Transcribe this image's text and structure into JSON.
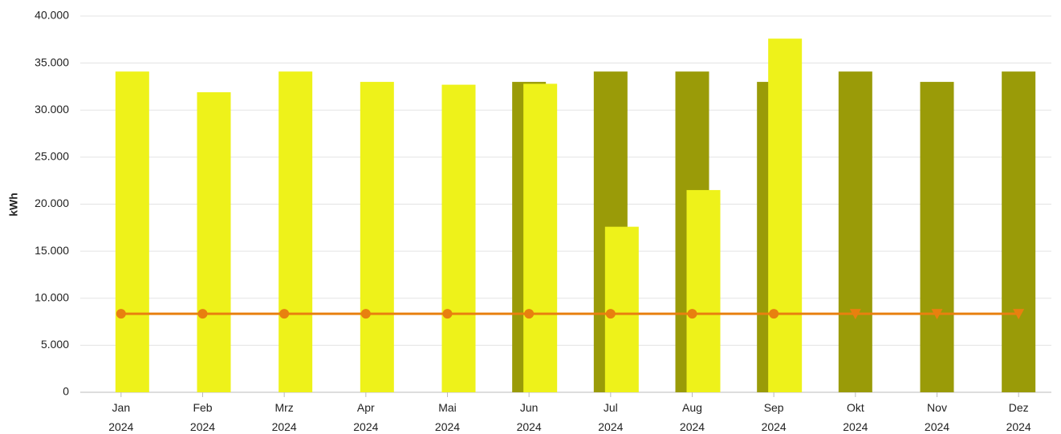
{
  "chart_data": {
    "type": "bar",
    "y_label": "kWh",
    "categories": [
      "Jan\n2024",
      "Feb\n2024",
      "Mrz\n2024",
      "Apr\n2024",
      "Mai\n2024",
      "Jun\n2024",
      "Jul\n2024",
      "Aug\n2024",
      "Sep\n2024",
      "Okt\n2024",
      "Nov\n2024",
      "Dez\n2024"
    ],
    "series": [
      {
        "color": "#9a9b08",
        "values": [
          null,
          null,
          null,
          null,
          null,
          33000,
          34100,
          34100,
          33000,
          34100,
          33000,
          34100
        ]
      },
      {
        "color": "#eef21a",
        "values": [
          34100,
          31900,
          34100,
          33000,
          32700,
          32800,
          17600,
          21500,
          37600,
          null,
          null,
          null
        ]
      },
      {
        "type": "line",
        "color": "#e8800f",
        "values": [
          8350,
          8350,
          8350,
          8350,
          8350,
          8350,
          8350,
          8350,
          8350,
          8350,
          8350,
          8350
        ],
        "markers": [
          "circle",
          "circle",
          "circle",
          "circle",
          "circle",
          "circle",
          "circle",
          "circle",
          "circle",
          "triangle",
          "triangle",
          "triangle"
        ]
      }
    ],
    "ylim": [
      0,
      40000
    ],
    "yticks": [
      0,
      {
        "value": 5000,
        "label": "5.000"
      },
      {
        "value": 10000,
        "label": "10.000"
      },
      {
        "value": 15000,
        "label": "15.000"
      },
      {
        "value": 20000,
        "label": "20.000"
      },
      {
        "value": 25000,
        "label": "25.000"
      },
      {
        "value": 30000,
        "label": "30.000"
      },
      {
        "value": 35000,
        "label": "35.000"
      },
      {
        "value": 40000,
        "label": "40.000"
      }
    ],
    "grid": true
  }
}
